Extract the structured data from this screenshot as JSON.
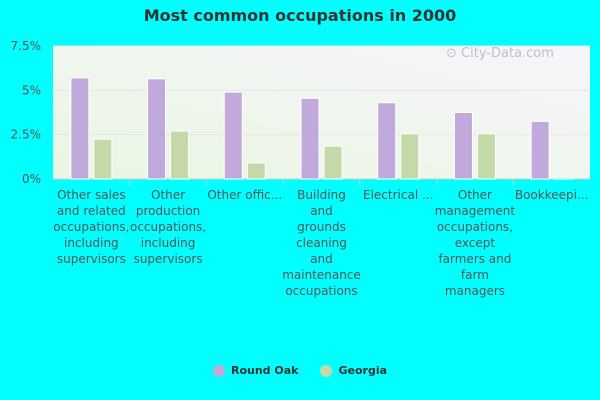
{
  "chart_data": {
    "type": "bar",
    "title": "Most common occupations in 2000",
    "categories": [
      "Other sales and related occupations, including supervisors",
      "Other production occupations, including supervisors",
      "Other offic...",
      "Building and grounds cleaning and maintenance occupations",
      "Electrical ...",
      "Other management occupations, except farmers and farm managers",
      "Bookkeepi..."
    ],
    "category_lines": [
      [
        "Other sales",
        "and related",
        "occupations,",
        "including",
        "supervisors"
      ],
      [
        "Other",
        "production",
        "occupations,",
        "including",
        "supervisors"
      ],
      [
        "Other offic..."
      ],
      [
        "Building",
        "and",
        "grounds",
        "cleaning",
        "and",
        "maintenance",
        "occupations"
      ],
      [
        "Electrical ..."
      ],
      [
        "Other",
        "management",
        "occupations,",
        "except",
        "farmers and",
        "farm",
        "managers"
      ],
      [
        "Bookkeepi..."
      ]
    ],
    "series": [
      {
        "name": "Round Oak",
        "values": [
          5.7,
          5.65,
          4.9,
          4.55,
          4.3,
          3.75,
          3.25
        ],
        "color": "#c2a9dc"
      },
      {
        "name": "Georgia",
        "values": [
          2.25,
          2.7,
          0.9,
          1.85,
          2.55,
          2.55,
          0.1
        ],
        "color": "#c5d9a8"
      }
    ],
    "yticks": [
      "0%",
      "2.5%",
      "5%",
      "7.5%"
    ],
    "ytick_values": [
      0,
      2.5,
      5,
      7.5
    ],
    "ylim": [
      0,
      7.5
    ],
    "xlabel": "",
    "ylabel": "",
    "legend_position": "bottom",
    "grid": true
  },
  "watermark": "City-Data.com",
  "colors": {
    "background": "#00ffff",
    "plot_bg": "#f1f8ee",
    "axis": "#cccccc",
    "text": "#555555"
  }
}
